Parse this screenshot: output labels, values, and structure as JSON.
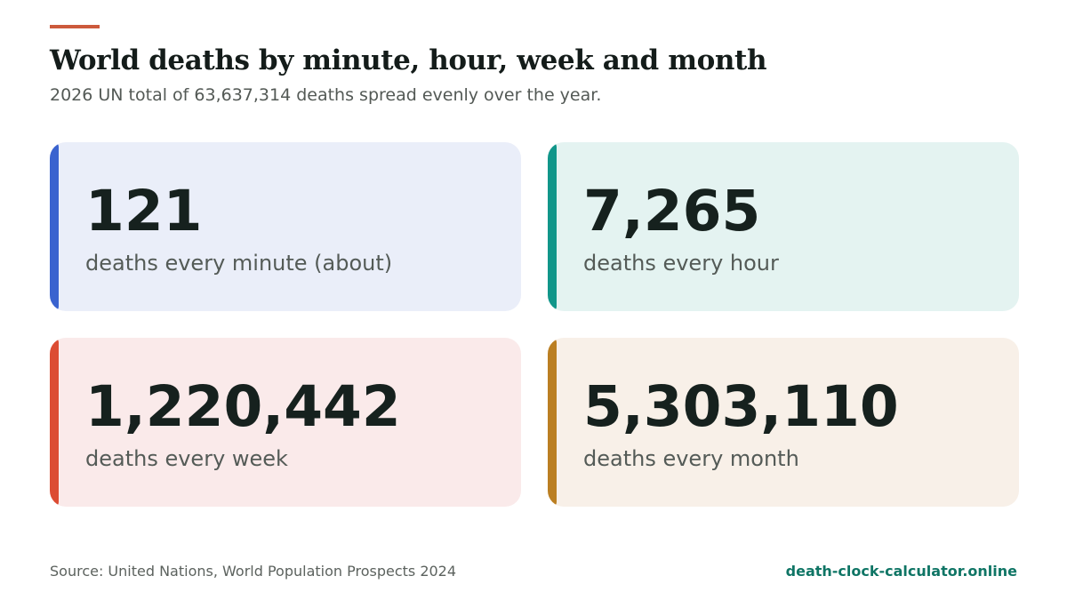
{
  "header": {
    "title": "World deaths by minute, hour, week and month",
    "subtitle": "2026 UN total of 63,637,314 deaths spread evenly over the year."
  },
  "cards": [
    {
      "value": "121",
      "label": "deaths every minute (about)",
      "accent_color": "#3a63cf",
      "background_color": "#eaeef9"
    },
    {
      "value": "7,265",
      "label": "deaths every hour",
      "accent_color": "#11968a",
      "background_color": "#e4f3f1"
    },
    {
      "value": "1,220,442",
      "label": "deaths every week",
      "accent_color": "#dc4c33",
      "background_color": "#faeaea"
    },
    {
      "value": "5,303,110",
      "label": "deaths every month",
      "accent_color": "#bb7f22",
      "background_color": "#f8f0e8"
    }
  ],
  "footer": {
    "source": "Source: United Nations, World Population Prospects 2024",
    "site": "death-clock-calculator.online"
  },
  "colors": {
    "title_accent": "#cc5a3c",
    "site_link": "#0f7565"
  }
}
